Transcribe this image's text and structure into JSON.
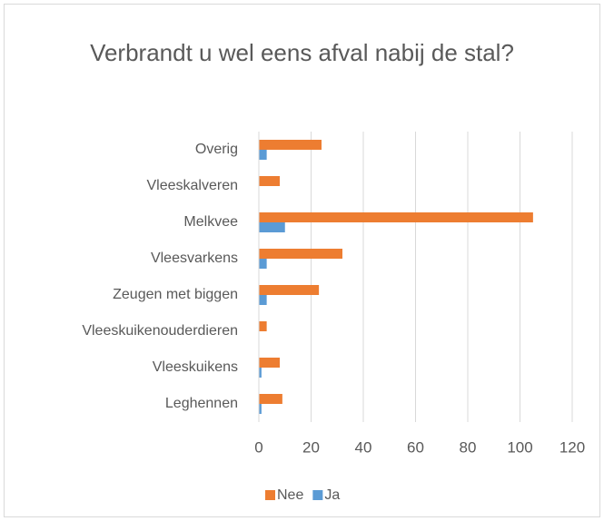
{
  "chart_data": {
    "type": "barh",
    "title": "Verbrandt u wel eens afval nabij de stal?",
    "categories": [
      "Overig",
      "Vleeskalveren",
      "Melkvee",
      "Vleesvarkens",
      "Zeugen met biggen",
      "Vleeskuikenouderdieren",
      "Vleeskuikens",
      "Leghennen"
    ],
    "series": [
      {
        "name": "Nee",
        "color": "#ed7d31",
        "values": [
          24,
          8,
          105,
          32,
          23,
          3,
          8,
          9
        ]
      },
      {
        "name": "Ja",
        "color": "#5b9bd5",
        "values": [
          3,
          0,
          10,
          3,
          3,
          0,
          1,
          1
        ]
      }
    ],
    "xlim": [
      0,
      120
    ],
    "xticks": [
      0,
      20,
      40,
      60,
      80,
      100,
      120
    ],
    "grid": true,
    "legend": "bottom"
  }
}
